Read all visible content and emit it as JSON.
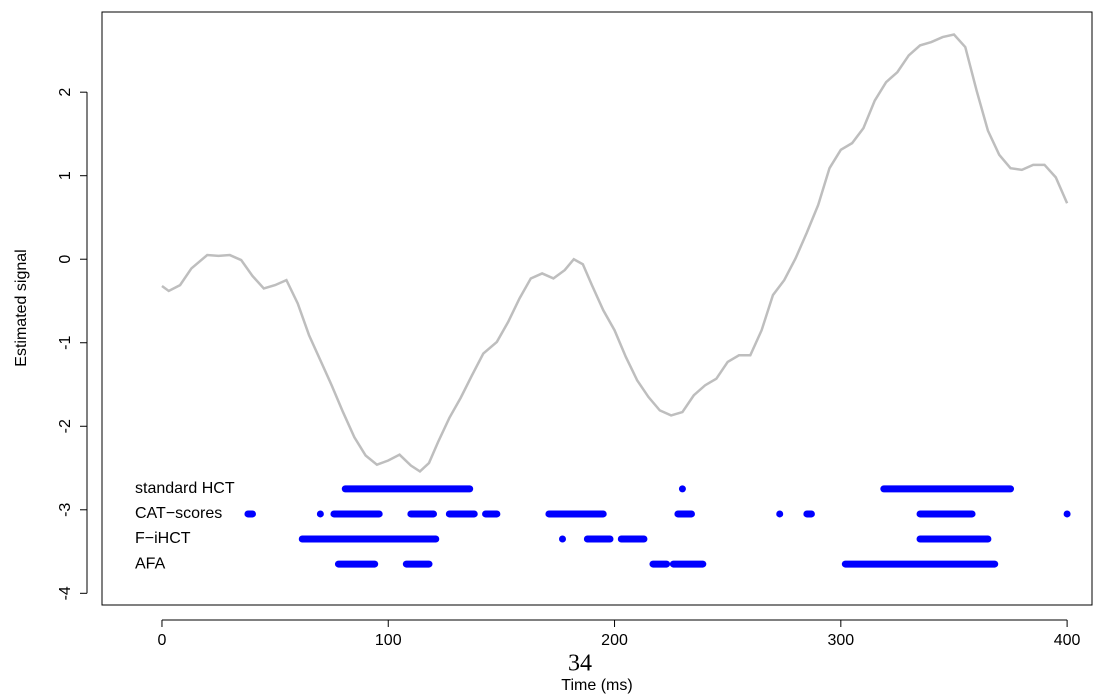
{
  "chart_data": {
    "type": "line",
    "xlabel": "Time (ms)",
    "ylabel": "Estimated signal",
    "page_number": "34",
    "xlim": [
      -26.5,
      411
    ],
    "ylim": [
      -4.14,
      2.96
    ],
    "xticks": [
      0,
      100,
      200,
      300,
      400
    ],
    "yticks": [
      -4,
      -3,
      -2,
      -1,
      0,
      1,
      2
    ],
    "series": [
      {
        "color": "#bebebe",
        "x": [
          0,
          3,
          8,
          13,
          20,
          25,
          30,
          35,
          40,
          45,
          50,
          55,
          60,
          65,
          70,
          75,
          80,
          85,
          90,
          95,
          100,
          105,
          110,
          114,
          118,
          122,
          127,
          132,
          137,
          142,
          148,
          153,
          158,
          163,
          168,
          173,
          178,
          182,
          186,
          190,
          195,
          200,
          205,
          210,
          215,
          220,
          225,
          230,
          235,
          240,
          245,
          250,
          255,
          260,
          265,
          270,
          275,
          280,
          285,
          290,
          295,
          300,
          305,
          310,
          315,
          320,
          325,
          330,
          335,
          340,
          345,
          350,
          355,
          360,
          365,
          370,
          375,
          380,
          385,
          390,
          395,
          400
        ],
        "values": [
          -0.32,
          -0.38,
          -0.31,
          -0.11,
          0.05,
          0.04,
          0.05,
          -0.01,
          -0.2,
          -0.35,
          -0.31,
          -0.25,
          -0.53,
          -0.91,
          -1.21,
          -1.51,
          -1.83,
          -2.13,
          -2.35,
          -2.46,
          -2.41,
          -2.34,
          -2.47,
          -2.54,
          -2.44,
          -2.19,
          -1.9,
          -1.66,
          -1.39,
          -1.13,
          -0.99,
          -0.75,
          -0.47,
          -0.23,
          -0.17,
          -0.23,
          -0.13,
          0,
          -0.06,
          -0.31,
          -0.61,
          -0.85,
          -1.17,
          -1.45,
          -1.65,
          -1.81,
          -1.87,
          -1.83,
          -1.63,
          -1.51,
          -1.43,
          -1.23,
          -1.15,
          -1.15,
          -0.85,
          -0.43,
          -0.25,
          0.01,
          0.32,
          0.65,
          1.09,
          1.31,
          1.39,
          1.57,
          1.9,
          2.12,
          2.24,
          2.44,
          2.56,
          2.6,
          2.66,
          2.69,
          2.54,
          2.02,
          1.54,
          1.25,
          1.09,
          1.07,
          1.13,
          1.13,
          0.98,
          0.67
        ]
      }
    ],
    "intervals": [
      {
        "name": "standard HCT",
        "color": "#0000ff",
        "y": -2.75,
        "segments": [
          [
            81,
            136
          ],
          [
            230,
            230
          ],
          [
            319,
            375
          ]
        ]
      },
      {
        "name": "CAT−scores",
        "color": "#0000ff",
        "y": -3.05,
        "segments": [
          [
            38,
            40
          ],
          [
            70,
            70
          ],
          [
            76,
            96
          ],
          [
            110,
            120
          ],
          [
            127,
            138
          ],
          [
            143,
            148
          ],
          [
            171,
            195
          ],
          [
            228,
            234
          ],
          [
            273,
            273
          ],
          [
            285,
            287
          ],
          [
            335,
            358
          ],
          [
            400,
            400
          ]
        ]
      },
      {
        "name": "F−iHCT",
        "color": "#0000ff",
        "y": -3.35,
        "segments": [
          [
            62,
            121
          ],
          [
            177,
            177
          ],
          [
            188,
            198
          ],
          [
            203,
            213
          ],
          [
            335,
            365
          ]
        ]
      },
      {
        "name": "AFA",
        "color": "#0000ff",
        "y": -3.65,
        "segments": [
          [
            78,
            94
          ],
          [
            108,
            118
          ],
          [
            217,
            223
          ],
          [
            226,
            239
          ],
          [
            302,
            368
          ]
        ]
      }
    ]
  }
}
